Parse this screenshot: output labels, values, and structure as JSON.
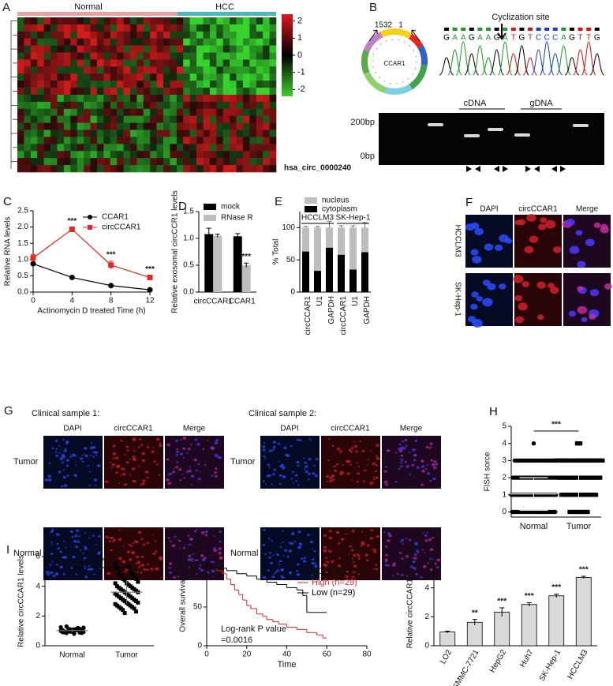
{
  "panels": {
    "A": {
      "letter": "A",
      "groups": [
        "Normal",
        "HCC"
      ],
      "colorbar_lim": [
        -2.4,
        2.4
      ],
      "colorbar_ticks": [
        2,
        1,
        0,
        -1,
        -2
      ],
      "row_label": "hsa_circ_0000240"
    },
    "B": {
      "letter": "B",
      "circle_labels": [
        "1532",
        "1"
      ],
      "gene": "CCAR1",
      "site": "Cyclization site",
      "sequence": [
        "G",
        "A",
        "A",
        "G",
        "A",
        "A",
        "G",
        "A",
        "T",
        "G",
        "T",
        "C",
        "C",
        "C",
        "A",
        "G",
        "T",
        "T",
        "G"
      ],
      "gel_groups": [
        "cDNA",
        "gDNA"
      ],
      "gel_markers": [
        "200bp",
        "0bp"
      ]
    },
    "F": {
      "letter": "F",
      "columns": [
        "DAPI",
        "circCCAR1",
        "Merge"
      ],
      "rows": [
        "HCCLM3",
        "SK-Hep-1"
      ]
    },
    "G": {
      "letter": "G",
      "samples": [
        "Clinical sample 1:",
        "Clinical sample 2:"
      ],
      "columns": [
        "DAPI",
        "circCCAR1",
        "Merge"
      ],
      "rows": [
        "Tumor",
        "Normal"
      ]
    }
  },
  "chart_data": [
    {
      "type": "line",
      "letter": "C",
      "ylabel": "Relative RNA levels",
      "xlabel": "Actinomycin D treated Time (h)",
      "x": [
        0,
        4,
        8,
        12
      ],
      "xlim": [
        0,
        12
      ],
      "xticks": [
        0,
        4,
        8,
        12
      ],
      "ylim": [
        0,
        2.5
      ],
      "yticks": [
        {
          "value": 0,
          "label": "0.0"
        },
        {
          "value": 0.5,
          "label": "0.5"
        },
        {
          "value": 1,
          "label": "1.0"
        },
        {
          "value": 1.5,
          "label": "1.5"
        },
        {
          "value": 2,
          "label": "2.0"
        },
        {
          "value": 2.5,
          "label": "2.5"
        }
      ],
      "series": [
        {
          "name": "CCAR1",
          "color": "#000000",
          "marker": "circle",
          "values": [
            0.87,
            0.45,
            0.2,
            0.07
          ],
          "errors": [
            0.05,
            0.03,
            0.02,
            0.02
          ]
        },
        {
          "name": "circCCAR1",
          "color": "#e8261f",
          "marker": "square",
          "values": [
            1.05,
            1.93,
            0.83,
            0.45
          ],
          "errors": [
            0.1,
            0.05,
            0.12,
            0.05
          ]
        }
      ],
      "annotations": [
        null,
        "***",
        "***",
        "***"
      ],
      "legend": "upper right"
    },
    {
      "type": "bar",
      "letter": "D",
      "ylabel": "Relative exosomal circCCR1 levels",
      "categories": [
        "circCCAR1",
        "CCAR1"
      ],
      "ylim": [
        0,
        1.5
      ],
      "yticks": [
        {
          "value": 0,
          "label": "0.0"
        },
        {
          "value": 0.5,
          "label": "0.5"
        },
        {
          "value": 1,
          "label": "1.0"
        },
        {
          "value": 1.5,
          "label": "1.5"
        }
      ],
      "series": [
        {
          "name": "mock",
          "color": "#000000",
          "values": [
            1.08,
            1.04
          ],
          "errors": [
            0.11,
            0.05
          ],
          "annotations": [
            null,
            null
          ]
        },
        {
          "name": "RNase R",
          "color": "#bdbdbd",
          "values": [
            1.05,
            0.5
          ],
          "errors": [
            0.03,
            0.04
          ],
          "annotations": [
            null,
            "***"
          ]
        }
      ],
      "legend": "upper left"
    },
    {
      "type": "stacked_bar",
      "letter": "E",
      "ylabel": "% Total",
      "categories": [
        "circCCAR1",
        "U1",
        "GAPDH",
        "circCCAR1",
        "U1",
        "GAPDH"
      ],
      "groups": [
        "HCCLM3",
        "SK-Hep-1"
      ],
      "ylim": [
        0,
        125
      ],
      "yticks": [
        0,
        50,
        100
      ],
      "series": [
        {
          "name": "nucleus",
          "color": "#bdbdbd",
          "values": [
            37,
            67,
            31,
            42,
            65,
            38
          ],
          "errors": [
            2,
            2,
            10,
            3,
            3,
            8
          ]
        },
        {
          "name": "cytoplasm",
          "color": "#000000",
          "values": [
            63,
            33,
            69,
            58,
            35,
            62
          ],
          "errors": [
            3,
            3,
            12,
            4,
            2,
            9
          ]
        }
      ],
      "legend": "top"
    },
    {
      "type": "dot_plot",
      "letter": "H",
      "ylabel": "FISH sorce",
      "categories": [
        "Normal",
        "Tumor"
      ],
      "markers": [
        "circle",
        "square"
      ],
      "scores": [
        0,
        1,
        2,
        3,
        4
      ],
      "counts": [
        [
          27,
          28,
          26,
          24,
          1
        ],
        [
          12,
          22,
          27,
          30,
          3
        ]
      ],
      "mean": [
        1.05,
        1.7
      ],
      "sd": [
        0.95,
        1.1
      ],
      "ylim": [
        -0.3,
        5
      ],
      "yticks": [
        0,
        1,
        2,
        3,
        4,
        5
      ],
      "annotation": "***"
    },
    {
      "type": "strip_plot",
      "letter": "I",
      "ylabel": "Relative circCCAR1 levels",
      "categories": [
        "Normal",
        "Tumor"
      ],
      "markers": [
        "circle",
        "square"
      ],
      "values": [
        [
          1.0,
          0.95,
          1.05,
          1.1,
          0.9,
          1.2,
          0.85,
          1.0,
          1.15,
          0.98,
          1.02,
          0.92,
          1.08,
          1.25,
          0.8,
          1.0,
          1.12,
          0.96,
          1.04,
          1.3,
          0.88,
          1.0,
          1.06,
          0.94,
          1.18,
          1.01,
          0.99,
          1.1,
          0.9,
          1.03,
          0.97,
          1.07,
          0.93,
          1.14,
          1.0,
          0.86,
          1.09,
          1.22,
          0.95,
          1.05
        ],
        [
          5.5,
          5.3,
          5.2,
          5.0,
          4.9,
          4.8,
          4.7,
          4.6,
          4.5,
          4.5,
          4.4,
          4.3,
          4.2,
          4.2,
          4.1,
          4.0,
          4.0,
          3.9,
          3.9,
          3.8,
          3.8,
          3.7,
          3.7,
          3.6,
          3.6,
          3.5,
          3.5,
          3.4,
          3.4,
          3.3,
          3.3,
          3.2,
          3.2,
          3.1,
          3.1,
          3.0,
          3.0,
          2.9,
          2.9,
          2.8,
          2.8,
          2.7,
          2.7,
          2.6,
          2.6,
          2.5,
          2.5,
          2.4,
          2.3,
          2.2
        ]
      ],
      "mean": [
        1.02,
        3.6
      ],
      "sd": [
        0.1,
        0.75
      ],
      "ylim": [
        0,
        6
      ],
      "yticks": [
        0,
        2,
        4,
        6
      ],
      "annotation": "***"
    },
    {
      "type": "survival",
      "letter": "J",
      "ylabel": "Overall survival",
      "xlabel": "Time",
      "xlim": [
        0,
        80
      ],
      "xticks": [
        0,
        20,
        40,
        60,
        80
      ],
      "ylim": [
        0,
        105
      ],
      "yticks": [
        0,
        50,
        100
      ],
      "legend_title": "circCCAR1 level",
      "series": [
        {
          "name": "High (n=29)",
          "color": "#e8261f",
          "x": [
            0,
            5,
            8,
            10,
            12,
            14,
            16,
            18,
            20,
            22,
            25,
            28,
            30,
            33,
            36,
            40,
            45,
            50,
            55,
            58,
            60
          ],
          "values": [
            100,
            97,
            93,
            86,
            79,
            72,
            66,
            59,
            52,
            48,
            41,
            38,
            34,
            31,
            28,
            24,
            21,
            17,
            14,
            10,
            10
          ]
        },
        {
          "name": "Low (n=29)",
          "color": "#000000",
          "x": [
            0,
            10,
            15,
            20,
            25,
            30,
            35,
            40,
            45,
            48,
            50,
            55,
            60
          ],
          "values": [
            100,
            97,
            93,
            90,
            86,
            82,
            79,
            75,
            72,
            65,
            43,
            43,
            43
          ]
        }
      ],
      "annotations": [
        "Log-rank  P value",
        "=0.0016"
      ],
      "legend": "upper right"
    },
    {
      "type": "bar",
      "letter": "K",
      "ylabel": "Relative circCCAR1 levels",
      "categories": [
        "LO2",
        "SMMC-7721",
        "HepG2",
        "Huh7",
        "SK-Hep-1",
        "HCCLM3"
      ],
      "ylim": [
        0,
        6
      ],
      "yticks": [
        0,
        2,
        4,
        6
      ],
      "series": [
        {
          "color": "#d9d9d9",
          "values": [
            0.95,
            1.62,
            2.32,
            2.85,
            3.45,
            4.72
          ],
          "errors": [
            0.06,
            0.2,
            0.3,
            0.12,
            0.12,
            0.08
          ],
          "annotations": [
            null,
            "**",
            "***",
            "***",
            "***",
            "***"
          ]
        }
      ]
    }
  ]
}
